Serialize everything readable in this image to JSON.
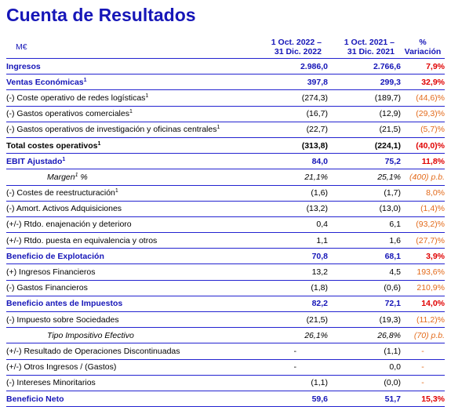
{
  "title": "Cuenta de Resultados",
  "header": {
    "unit": "M€",
    "col_a": [
      "1 Oct. 2022 –",
      "31 Dic. 2022"
    ],
    "col_b": [
      "1 Oct. 2021 –",
      "31 Dic. 2021"
    ],
    "col_c": [
      "%",
      "Variación"
    ]
  },
  "rows": [
    {
      "label": "Ingresos",
      "sup": "",
      "a": "2.986,0",
      "b": "2.766,6",
      "c": "7,9%",
      "style": "blue"
    },
    {
      "label": "Ventas Económicas",
      "sup": "1",
      "a": "397,8",
      "b": "299,3",
      "c": "32,9%",
      "style": "blue"
    },
    {
      "label": "(-) Coste operativo de redes logísticas",
      "sup": "1",
      "a": "(274,3)",
      "b": "(189,7)",
      "c": "(44,6)%",
      "style": "normal"
    },
    {
      "label": "(-) Gastos operativos comerciales",
      "sup": "1",
      "a": "(16,7)",
      "b": "(12,9)",
      "c": "(29,3)%",
      "style": "normal"
    },
    {
      "label": "(-) Gastos operativos de investigación y oficinas centrales",
      "sup": "1",
      "a": "(22,7)",
      "b": "(21,5)",
      "c": "(5,7)%",
      "style": "normal"
    },
    {
      "label": "Total costes operativos",
      "sup": "1",
      "a": "(313,8)",
      "b": "(224,1)",
      "c": "(40,0)%",
      "style": "bold"
    },
    {
      "label": "EBIT Ajustado",
      "sup": "1",
      "a": "84,0",
      "b": "75,2",
      "c": "11,8%",
      "style": "blue"
    },
    {
      "label": "Margen",
      "sup": "1",
      "suffix": " %",
      "a": "21,1%",
      "b": "25,1%",
      "c": "(400) p.b.",
      "style": "italic"
    },
    {
      "label": "(-) Costes de reestructuración",
      "sup": "1",
      "a": "(1,6)",
      "b": "(1,7)",
      "c": "8,0%",
      "style": "normal"
    },
    {
      "label": "(-) Amort. Activos Adquisiciones",
      "sup": "",
      "a": "(13,2)",
      "b": "(13,0)",
      "c": "(1,4)%",
      "style": "normal"
    },
    {
      "label": "(+/-) Rtdo. enajenación y deterioro",
      "sup": "",
      "a": "0,4",
      "b": "6,1",
      "c": "(93,2)%",
      "style": "normal"
    },
    {
      "label": "(+/-) Rtdo. puesta en equivalencia y otros",
      "sup": "",
      "a": "1,1",
      "b": "1,6",
      "c": "(27,7)%",
      "style": "normal"
    },
    {
      "label": "Beneficio de Explotación",
      "sup": "",
      "a": "70,8",
      "b": "68,1",
      "c": "3,9%",
      "style": "blue"
    },
    {
      "label": "(+) Ingresos Financieros",
      "sup": "",
      "a": "13,2",
      "b": "4,5",
      "c": "193,6%",
      "style": "normal"
    },
    {
      "label": "(-) Gastos Financieros",
      "sup": "",
      "a": "(1,8)",
      "b": "(0,6)",
      "c": "210,9%",
      "style": "normal"
    },
    {
      "label": "Beneficio antes de Impuestos",
      "sup": "",
      "a": "82,2",
      "b": "72,1",
      "c": "14,0%",
      "style": "blue"
    },
    {
      "label": "(-) Impuesto sobre Sociedades",
      "sup": "",
      "a": "(21,5)",
      "b": "(19,3)",
      "c": "(11,2)%",
      "style": "normal"
    },
    {
      "label": "Tipo Impositivo Efectivo",
      "sup": "",
      "a": "26,1%",
      "b": "26,8%",
      "c": "(70) p.b.",
      "style": "italic"
    },
    {
      "label": "(+/-) Resultado de Operaciones Discontinuadas",
      "sup": "",
      "a": "-",
      "b": "(1,1)",
      "c": "-",
      "style": "normal"
    },
    {
      "label": "(+/-) Otros Ingresos / (Gastos)",
      "sup": "",
      "a": "-",
      "b": "0,0",
      "c": "-",
      "style": "normal"
    },
    {
      "label": "(-) Intereses Minoritarios",
      "sup": "",
      "a": "(1,1)",
      "b": "(0,0)",
      "c": "-",
      "style": "normal"
    },
    {
      "label": "Beneficio Neto",
      "sup": "",
      "a": "59,6",
      "b": "51,7",
      "c": "15,3%",
      "style": "blue"
    }
  ]
}
